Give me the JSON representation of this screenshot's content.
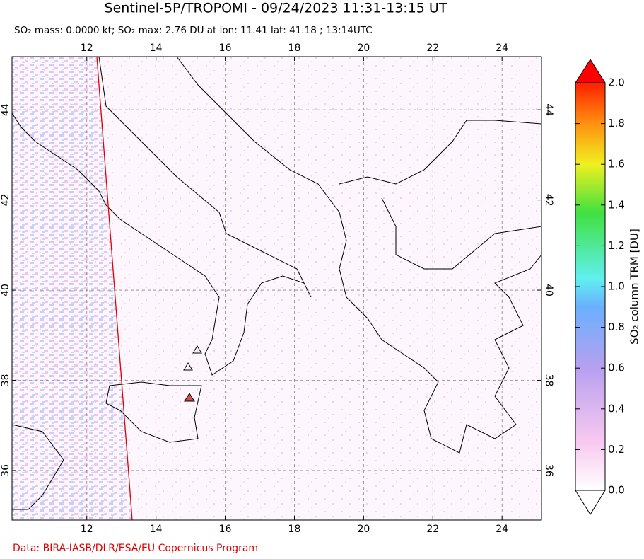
{
  "header": {
    "title": "Sentinel-5P/TROPOMI - 09/24/2023 11:31-13:15 UT",
    "subtitle": "SO₂ mass: 0.0000 kt; SO₂ max: 2.76 DU at lon: 11.41 lat: 41.18 ; 13:14UTC"
  },
  "map": {
    "xlim": [
      9.84,
      25.14
    ],
    "ylim": [
      34.9,
      45.18
    ],
    "xticks": [
      12,
      14,
      16,
      18,
      20,
      22,
      24
    ],
    "yticks": [
      36,
      38,
      40,
      42,
      44
    ]
  },
  "colorbar": {
    "label": "SO₂ column TRM [DU]",
    "lim": [
      0,
      2
    ],
    "ticks": [
      {
        "value": 0,
        "label": "0.0"
      },
      0.2,
      0.4,
      0.6,
      0.8,
      {
        "value": 1,
        "label": "1.0"
      },
      1.2,
      1.4,
      1.6,
      1.8,
      {
        "value": 2,
        "label": "2.0"
      }
    ]
  },
  "footer": {
    "credit": "Data: BIRA-IASB/DLR/ESA/EU Copernicus Program"
  }
}
